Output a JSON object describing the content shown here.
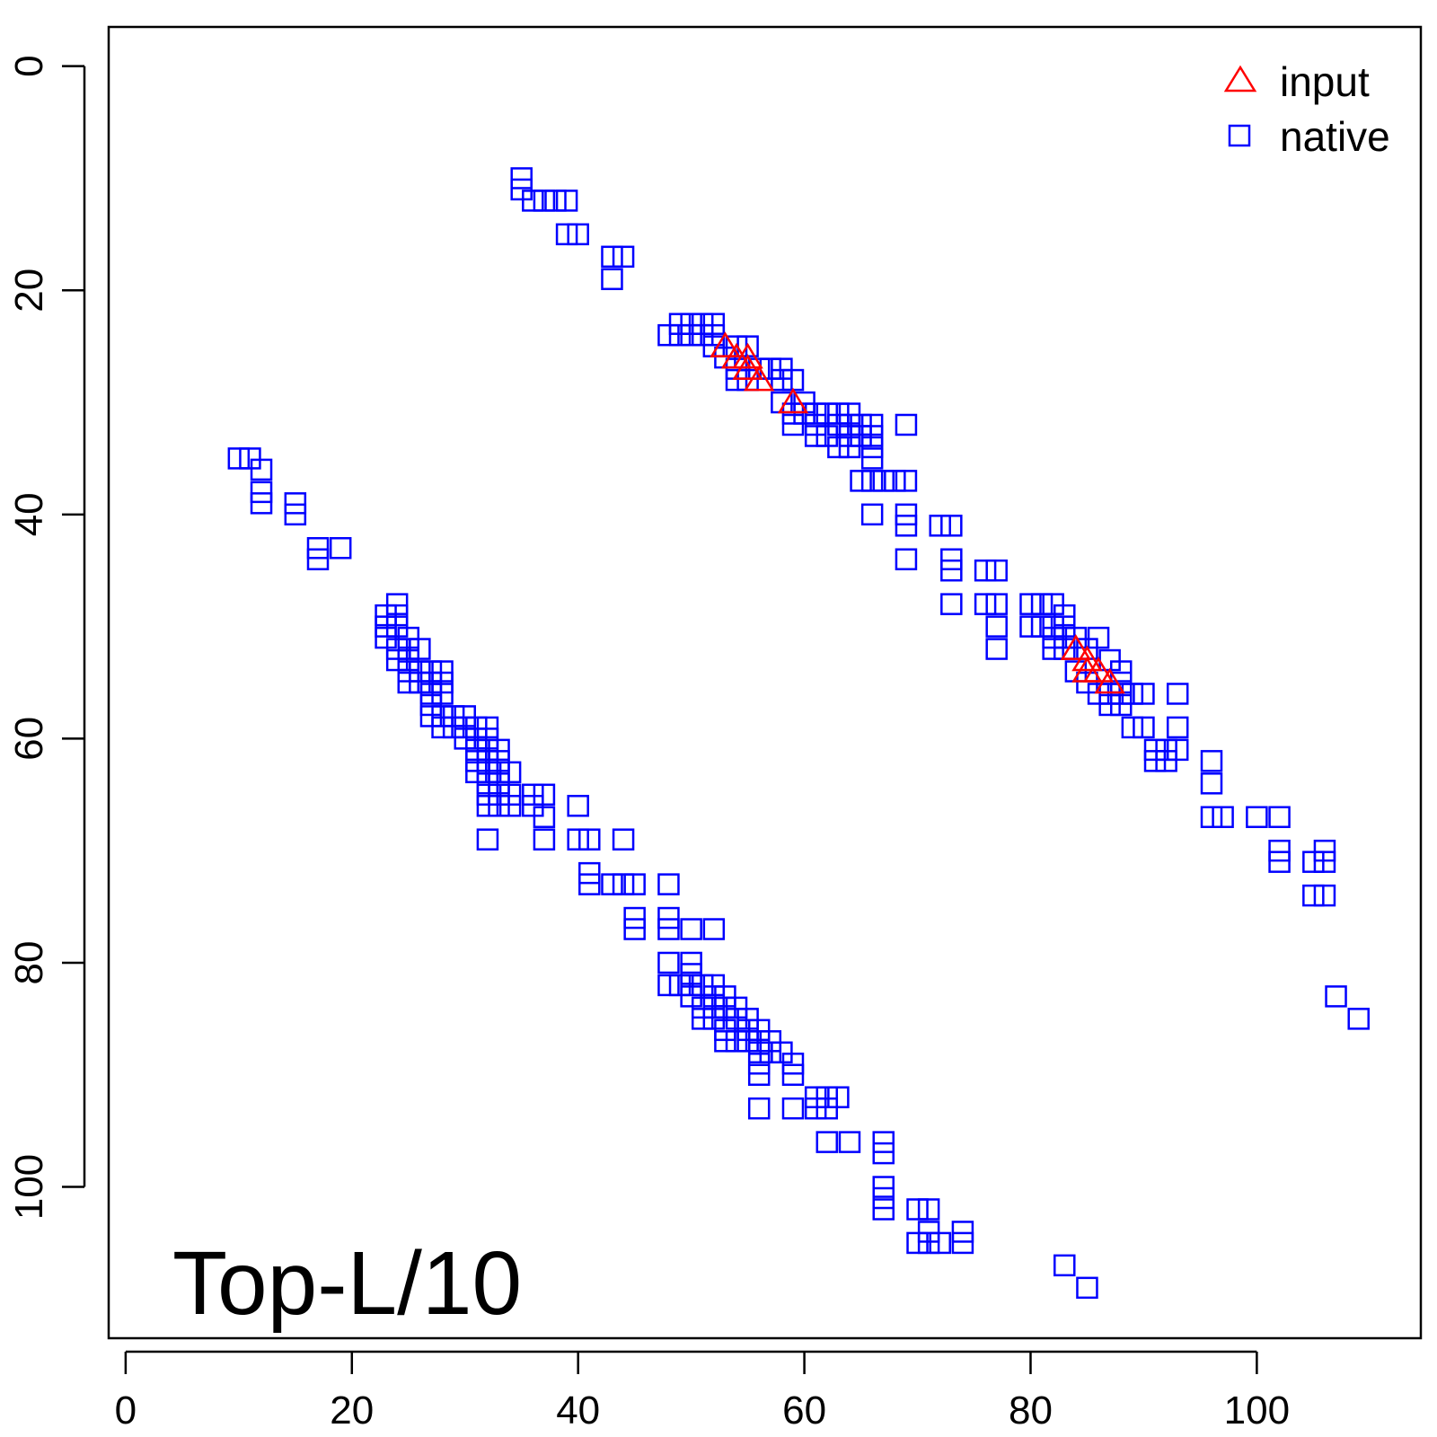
{
  "chart_data": {
    "type": "scatter",
    "title": "",
    "xlabel": "",
    "ylabel": "",
    "xlim": [
      -1.5,
      114.5
    ],
    "ylim": [
      -3.5,
      113.5
    ],
    "y_reversed": true,
    "grid": false,
    "x_ticks": [
      0,
      20,
      40,
      60,
      80,
      100
    ],
    "y_ticks": [
      0,
      20,
      40,
      60,
      80,
      100
    ],
    "legend": {
      "position": "top-right",
      "entries": [
        {
          "label": "input",
          "marker": "triangle",
          "color": "#ff0000"
        },
        {
          "label": "native",
          "marker": "square",
          "color": "#0000ff"
        }
      ]
    },
    "annotation": "Top-L/10",
    "series": [
      {
        "name": "input",
        "marker": "triangle",
        "color": "#ff0000",
        "points": [
          [
            53,
            25
          ],
          [
            54,
            26
          ],
          [
            55,
            26
          ],
          [
            55,
            27
          ],
          [
            56,
            28
          ],
          [
            59,
            30
          ],
          [
            84,
            52
          ],
          [
            85,
            53
          ],
          [
            85,
            54
          ],
          [
            86,
            54
          ],
          [
            87,
            55
          ]
        ]
      },
      {
        "name": "native",
        "marker": "square",
        "color": "#0000ff",
        "points": [
          [
            35,
            10
          ],
          [
            35,
            11
          ],
          [
            36,
            12
          ],
          [
            37,
            12
          ],
          [
            38,
            12
          ],
          [
            39,
            12
          ],
          [
            39,
            15
          ],
          [
            40,
            15
          ],
          [
            43,
            17
          ],
          [
            44,
            17
          ],
          [
            43,
            19
          ],
          [
            48,
            24
          ],
          [
            49,
            23
          ],
          [
            49,
            24
          ],
          [
            50,
            23
          ],
          [
            50,
            24
          ],
          [
            51,
            23
          ],
          [
            51,
            24
          ],
          [
            52,
            23
          ],
          [
            52,
            24
          ],
          [
            52,
            25
          ],
          [
            53,
            26
          ],
          [
            54,
            25
          ],
          [
            54,
            27
          ],
          [
            54,
            28
          ],
          [
            55,
            25
          ],
          [
            55,
            28
          ],
          [
            56,
            27
          ],
          [
            57,
            27
          ],
          [
            58,
            27
          ],
          [
            58,
            28
          ],
          [
            59,
            28
          ],
          [
            58,
            30
          ],
          [
            59,
            31
          ],
          [
            59,
            32
          ],
          [
            60,
            30
          ],
          [
            60,
            31
          ],
          [
            61,
            31
          ],
          [
            61,
            32
          ],
          [
            62,
            31
          ],
          [
            61,
            33
          ],
          [
            62,
            33
          ],
          [
            63,
            31
          ],
          [
            63,
            32
          ],
          [
            63,
            34
          ],
          [
            64,
            31
          ],
          [
            64,
            32
          ],
          [
            64,
            33
          ],
          [
            64,
            34
          ],
          [
            65,
            32
          ],
          [
            65,
            33
          ],
          [
            66,
            32
          ],
          [
            66,
            33
          ],
          [
            66,
            34
          ],
          [
            66,
            35
          ],
          [
            65,
            37
          ],
          [
            66,
            37
          ],
          [
            67,
            37
          ],
          [
            66,
            40
          ],
          [
            68,
            37
          ],
          [
            69,
            37
          ],
          [
            69,
            32
          ],
          [
            69,
            40
          ],
          [
            69,
            41
          ],
          [
            69,
            44
          ],
          [
            72,
            41
          ],
          [
            73,
            41
          ],
          [
            73,
            44
          ],
          [
            73,
            45
          ],
          [
            73,
            48
          ],
          [
            76,
            45
          ],
          [
            77,
            45
          ],
          [
            76,
            48
          ],
          [
            77,
            48
          ],
          [
            77,
            50
          ],
          [
            77,
            52
          ],
          [
            80,
            48
          ],
          [
            80,
            50
          ],
          [
            81,
            48
          ],
          [
            81,
            50
          ],
          [
            82,
            48
          ],
          [
            82,
            50
          ],
          [
            82,
            51
          ],
          [
            82,
            52
          ],
          [
            83,
            49
          ],
          [
            83,
            50
          ],
          [
            83,
            51
          ],
          [
            83,
            52
          ],
          [
            84,
            51
          ],
          [
            84,
            54
          ],
          [
            85,
            52
          ],
          [
            86,
            51
          ],
          [
            85,
            55
          ],
          [
            86,
            56
          ],
          [
            87,
            53
          ],
          [
            87,
            56
          ],
          [
            87,
            57
          ],
          [
            88,
            54
          ],
          [
            88,
            55
          ],
          [
            88,
            56
          ],
          [
            88,
            57
          ],
          [
            89,
            56
          ],
          [
            89,
            59
          ],
          [
            90,
            56
          ],
          [
            90,
            59
          ],
          [
            91,
            61
          ],
          [
            91,
            62
          ],
          [
            92,
            61
          ],
          [
            92,
            62
          ],
          [
            93,
            61
          ],
          [
            93,
            56
          ],
          [
            93,
            59
          ],
          [
            96,
            62
          ],
          [
            96,
            64
          ],
          [
            96,
            67
          ],
          [
            97,
            67
          ],
          [
            100,
            67
          ],
          [
            102,
            67
          ],
          [
            102,
            70
          ],
          [
            102,
            71
          ],
          [
            105,
            71
          ],
          [
            106,
            70
          ],
          [
            106,
            71
          ],
          [
            105,
            74
          ],
          [
            106,
            74
          ],
          [
            107,
            83
          ],
          [
            109,
            85
          ],
          [
            10,
            35
          ],
          [
            11,
            35
          ],
          [
            12,
            36
          ],
          [
            12,
            38
          ],
          [
            12,
            39
          ],
          [
            15,
            39
          ],
          [
            15,
            40
          ],
          [
            17,
            43
          ],
          [
            17,
            44
          ],
          [
            19,
            43
          ],
          [
            23,
            49
          ],
          [
            23,
            50
          ],
          [
            23,
            51
          ],
          [
            24,
            48
          ],
          [
            24,
            49
          ],
          [
            24,
            50
          ],
          [
            24,
            52
          ],
          [
            24,
            53
          ],
          [
            25,
            51
          ],
          [
            25,
            52
          ],
          [
            25,
            53
          ],
          [
            25,
            54
          ],
          [
            25,
            55
          ],
          [
            26,
            52
          ],
          [
            26,
            54
          ],
          [
            26,
            55
          ],
          [
            27,
            54
          ],
          [
            27,
            55
          ],
          [
            27,
            56
          ],
          [
            27,
            57
          ],
          [
            27,
            58
          ],
          [
            28,
            54
          ],
          [
            28,
            55
          ],
          [
            28,
            56
          ],
          [
            28,
            58
          ],
          [
            28,
            59
          ],
          [
            29,
            58
          ],
          [
            29,
            59
          ],
          [
            30,
            58
          ],
          [
            30,
            59
          ],
          [
            30,
            60
          ],
          [
            31,
            59
          ],
          [
            31,
            60
          ],
          [
            31,
            61
          ],
          [
            31,
            62
          ],
          [
            31,
            63
          ],
          [
            32,
            59
          ],
          [
            32,
            60
          ],
          [
            32,
            61
          ],
          [
            32,
            62
          ],
          [
            32,
            63
          ],
          [
            32,
            64
          ],
          [
            32,
            65
          ],
          [
            32,
            66
          ],
          [
            33,
            61
          ],
          [
            33,
            62
          ],
          [
            33,
            63
          ],
          [
            33,
            64
          ],
          [
            33,
            65
          ],
          [
            33,
            66
          ],
          [
            34,
            63
          ],
          [
            34,
            65
          ],
          [
            34,
            66
          ],
          [
            32,
            69
          ],
          [
            36,
            65
          ],
          [
            37,
            65
          ],
          [
            36,
            66
          ],
          [
            37,
            67
          ],
          [
            37,
            69
          ],
          [
            40,
            66
          ],
          [
            40,
            69
          ],
          [
            41,
            69
          ],
          [
            44,
            69
          ],
          [
            41,
            72
          ],
          [
            41,
            73
          ],
          [
            43,
            73
          ],
          [
            44,
            73
          ],
          [
            45,
            73
          ],
          [
            45,
            76
          ],
          [
            45,
            77
          ],
          [
            48,
            73
          ],
          [
            48,
            76
          ],
          [
            48,
            77
          ],
          [
            50,
            77
          ],
          [
            52,
            77
          ],
          [
            48,
            80
          ],
          [
            48,
            82
          ],
          [
            49,
            82
          ],
          [
            50,
            80
          ],
          [
            50,
            81
          ],
          [
            50,
            82
          ],
          [
            50,
            83
          ],
          [
            51,
            82
          ],
          [
            51,
            84
          ],
          [
            51,
            85
          ],
          [
            52,
            82
          ],
          [
            52,
            83
          ],
          [
            52,
            84
          ],
          [
            52,
            85
          ],
          [
            53,
            83
          ],
          [
            53,
            84
          ],
          [
            53,
            86
          ],
          [
            53,
            87
          ],
          [
            54,
            84
          ],
          [
            54,
            85
          ],
          [
            54,
            87
          ],
          [
            55,
            85
          ],
          [
            55,
            86
          ],
          [
            55,
            87
          ],
          [
            56,
            86
          ],
          [
            56,
            87
          ],
          [
            56,
            88
          ],
          [
            56,
            89
          ],
          [
            56,
            90
          ],
          [
            57,
            87
          ],
          [
            57,
            88
          ],
          [
            58,
            88
          ],
          [
            56,
            93
          ],
          [
            59,
            89
          ],
          [
            59,
            90
          ],
          [
            59,
            93
          ],
          [
            61,
            92
          ],
          [
            61,
            93
          ],
          [
            62,
            92
          ],
          [
            62,
            93
          ],
          [
            63,
            92
          ],
          [
            62,
            96
          ],
          [
            64,
            96
          ],
          [
            67,
            96
          ],
          [
            67,
            97
          ],
          [
            67,
            100
          ],
          [
            67,
            101
          ],
          [
            67,
            102
          ],
          [
            70,
            102
          ],
          [
            71,
            102
          ],
          [
            70,
            105
          ],
          [
            71,
            104
          ],
          [
            71,
            105
          ],
          [
            72,
            105
          ],
          [
            74,
            104
          ],
          [
            74,
            105
          ],
          [
            83,
            107
          ],
          [
            85,
            109
          ]
        ]
      }
    ]
  }
}
